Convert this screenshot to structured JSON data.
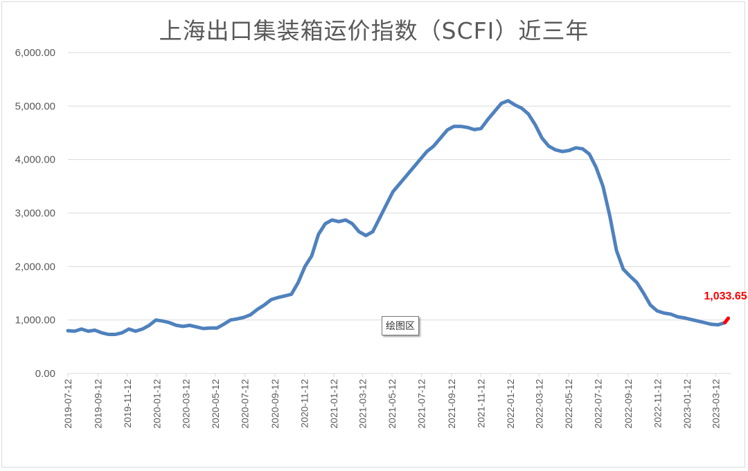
{
  "title": "上海出口集装箱运价指数（SCFI）近三年",
  "tooltip": "绘图区",
  "colors": {
    "line": "#4f81bd",
    "highlight": "#ff0000",
    "grid": "#d9d9d9",
    "text": "#595959"
  },
  "chart_data": {
    "type": "line",
    "title": "上海出口集装箱运价指数（SCFI）近三年",
    "xlabel": "",
    "ylabel": "",
    "ylim": [
      0,
      6000
    ],
    "yticks": [
      "0.00",
      "1,000.00",
      "2,000.00",
      "3,000.00",
      "4,000.00",
      "5,000.00",
      "6,000.00"
    ],
    "xticks": [
      "2019-07-12",
      "2019-09-12",
      "2019-11-12",
      "2020-01-12",
      "2020-03-12",
      "2020-05-12",
      "2020-07-12",
      "2020-09-12",
      "2020-11-12",
      "2021-01-12",
      "2021-03-12",
      "2021-05-12",
      "2021-07-12",
      "2021-09-12",
      "2021-11-12",
      "2022-01-12",
      "2022-03-12",
      "2022-05-12",
      "2022-07-12",
      "2022-09-12",
      "2022-11-12",
      "2023-01-12",
      "2023-03-12"
    ],
    "grid": true,
    "legend": "none",
    "annotation": {
      "label": "1,033.65",
      "x": "2023-04-07",
      "y": 1033.65
    },
    "series": [
      {
        "x": [
          "2019-07-12",
          "2019-07-26",
          "2019-08-09",
          "2019-08-23",
          "2019-09-06",
          "2019-09-20",
          "2019-10-04",
          "2019-10-18",
          "2019-11-01",
          "2019-11-15",
          "2019-11-29",
          "2019-12-13",
          "2019-12-27",
          "2020-01-10",
          "2020-01-24",
          "2020-02-07",
          "2020-02-21",
          "2020-03-06",
          "2020-03-20",
          "2020-04-03",
          "2020-04-17",
          "2020-05-01",
          "2020-05-15",
          "2020-05-29",
          "2020-06-12",
          "2020-06-26",
          "2020-07-10",
          "2020-07-24",
          "2020-08-07",
          "2020-08-21",
          "2020-09-04",
          "2020-09-18",
          "2020-10-02",
          "2020-10-16",
          "2020-10-30",
          "2020-11-13",
          "2020-11-27",
          "2020-12-11",
          "2020-12-25",
          "2021-01-08",
          "2021-01-22",
          "2021-02-05",
          "2021-02-19",
          "2021-03-05",
          "2021-03-19",
          "2021-04-02",
          "2021-04-16",
          "2021-04-30",
          "2021-05-14",
          "2021-05-28",
          "2021-06-11",
          "2021-06-25",
          "2021-07-09",
          "2021-07-23",
          "2021-08-06",
          "2021-08-20",
          "2021-09-03",
          "2021-09-17",
          "2021-10-01",
          "2021-10-15",
          "2021-10-29",
          "2021-11-12",
          "2021-11-26",
          "2021-12-10",
          "2021-12-24",
          "2022-01-07",
          "2022-01-21",
          "2022-02-04",
          "2022-02-18",
          "2022-03-04",
          "2022-03-18",
          "2022-04-01",
          "2022-04-15",
          "2022-04-29",
          "2022-05-13",
          "2022-05-27",
          "2022-06-10",
          "2022-06-24",
          "2022-07-08",
          "2022-07-22",
          "2022-08-05",
          "2022-08-19",
          "2022-09-02",
          "2022-09-16",
          "2022-09-30",
          "2022-10-14",
          "2022-10-28",
          "2022-11-11",
          "2022-11-25",
          "2022-12-09",
          "2022-12-23",
          "2023-01-06",
          "2023-01-20",
          "2023-02-03",
          "2023-02-17",
          "2023-03-03",
          "2023-03-17",
          "2023-03-31",
          "2023-04-07"
        ],
        "values": [
          800,
          790,
          830,
          790,
          810,
          760,
          730,
          730,
          760,
          830,
          790,
          830,
          900,
          1000,
          980,
          950,
          900,
          880,
          900,
          870,
          840,
          850,
          850,
          920,
          1000,
          1020,
          1050,
          1100,
          1200,
          1280,
          1380,
          1420,
          1450,
          1480,
          1700,
          2000,
          2200,
          2600,
          2800,
          2870,
          2840,
          2870,
          2800,
          2650,
          2580,
          2650,
          2900,
          3150,
          3400,
          3550,
          3700,
          3850,
          4000,
          4150,
          4250,
          4400,
          4550,
          4620,
          4620,
          4600,
          4560,
          4580,
          4750,
          4900,
          5050,
          5100,
          5020,
          4960,
          4850,
          4650,
          4400,
          4250,
          4180,
          4150,
          4170,
          4220,
          4200,
          4100,
          3850,
          3500,
          2950,
          2300,
          1950,
          1820,
          1700,
          1500,
          1280,
          1170,
          1130,
          1110,
          1060,
          1040,
          1010,
          980,
          950,
          920,
          910,
          950,
          1033.65
        ]
      }
    ]
  }
}
